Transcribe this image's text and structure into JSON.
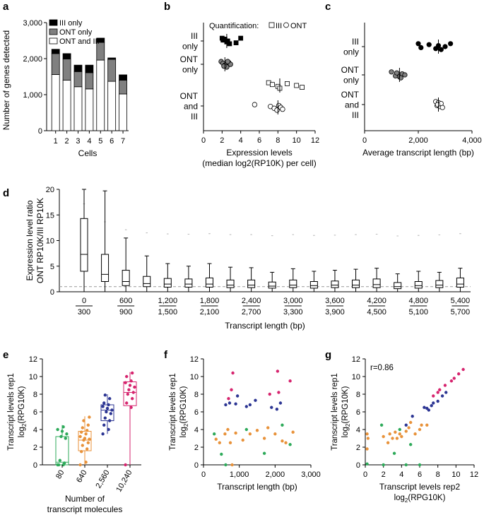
{
  "colors": {
    "black": "#000000",
    "ont_gray": "#808080",
    "green": "#2eaa5a",
    "orange": "#e8923a",
    "blue": "#2c3593",
    "magenta": "#d6246e",
    "box_edge": "#000000",
    "dash": "#999999"
  },
  "chart_data": [
    {
      "panel": "a",
      "type": "bar",
      "stacked": true,
      "categories": [
        "1",
        "2",
        "3",
        "4",
        "5",
        "6",
        "7"
      ],
      "series": [
        {
          "name": "ONT and III",
          "values": [
            1560,
            1400,
            1220,
            1160,
            1960,
            1370,
            1020
          ]
        },
        {
          "name": "ONT only",
          "values": [
            580,
            590,
            420,
            450,
            490,
            610,
            380
          ]
        },
        {
          "name": "III only",
          "values": [
            120,
            150,
            180,
            210,
            120,
            40,
            150
          ]
        }
      ],
      "legend": [
        "III only",
        "ONT only",
        "ONT and III"
      ],
      "xlabel": "Cells",
      "ylabel": "Number of genes detected",
      "ylim": [
        0,
        3000
      ],
      "yticks": [
        "0",
        "1,000",
        "2,000",
        "3,000"
      ]
    },
    {
      "panel": "b",
      "type": "scatter",
      "categories": [
        "III only",
        "ONT only",
        "ONT and III"
      ],
      "category_lines": [
        [
          "III",
          "only"
        ],
        [
          "ONT",
          "only"
        ],
        [
          "ONT",
          "and",
          "III"
        ]
      ],
      "legend_label": "Quantification:",
      "legend_items": [
        "III",
        "ONT"
      ],
      "xlabel": "Expression levels",
      "xlabel2": "(median log2(RP10K) per cell)",
      "xlim": [
        0,
        12
      ],
      "xticks": [
        "0",
        "2",
        "4",
        "6",
        "8",
        "10",
        "12"
      ],
      "series": [
        {
          "name": "III",
          "category": "III only",
          "x": [
            2.0,
            2.2,
            2.5,
            2.8,
            2.3,
            2.6,
            3.5,
            4.0,
            2.1
          ]
        },
        {
          "name": "ONT",
          "category": "ONT only",
          "x": [
            1.9,
            2.1,
            2.3,
            2.5,
            2.7,
            2.9,
            2.2,
            2.6
          ]
        },
        {
          "name": "III",
          "category": "ONT and III",
          "x": [
            7.0,
            7.4,
            8.0,
            8.2,
            9.0,
            10.0,
            10.6
          ]
        },
        {
          "name": "ONT",
          "category": "ONT and III",
          "x": [
            5.5,
            7.2,
            7.6,
            7.9,
            8.1,
            8.3,
            8.5
          ]
        }
      ],
      "medians": {
        "III only": 2.5,
        "ONT only": 2.3,
        "ONT and III III": 8.2,
        "ONT and III ONT": 8.0
      }
    },
    {
      "panel": "c",
      "type": "scatter",
      "categories": [
        "III only",
        "ONT only",
        "ONT and III"
      ],
      "category_lines": [
        [
          "III",
          "only"
        ],
        [
          "ONT",
          "only"
        ],
        [
          "ONT",
          "and",
          "III"
        ]
      ],
      "xlabel": "Average transcript length (bp)",
      "xlim": [
        0,
        4000
      ],
      "xticks": [
        "0",
        "2,000",
        "4,000"
      ],
      "series": [
        {
          "name": "III only",
          "x": [
            2000,
            2100,
            2400,
            2650,
            2750,
            2850,
            3000,
            3200
          ]
        },
        {
          "name": "ONT only",
          "x": [
            1000,
            1150,
            1200,
            1300,
            1400,
            1350,
            1500
          ]
        },
        {
          "name": "ONT and III",
          "x": [
            2650,
            2700,
            2750,
            2800,
            2850,
            2900,
            2720
          ]
        }
      ],
      "medians": {
        "III only": 2750,
        "ONT only": 1300,
        "ONT and III": 2750
      }
    },
    {
      "panel": "d",
      "type": "box",
      "categories_top": [
        "0",
        "600",
        "1,200",
        "1,800",
        "2,400",
        "3,000",
        "3,600",
        "4,200",
        "4,800",
        "5,400"
      ],
      "categories_bottom": [
        "300",
        "900",
        "1,500",
        "2,100",
        "2,700",
        "3,300",
        "3,900",
        "4,500",
        "5,100",
        "5,700"
      ],
      "boxes": [
        {
          "min": 0,
          "q1": 4,
          "median": 7.3,
          "q3": 14.3,
          "max": 20
        },
        {
          "min": 0,
          "q1": 2,
          "median": 3.4,
          "q3": 7.3,
          "max": 19.7
        },
        {
          "min": 0,
          "q1": 1.2,
          "median": 2,
          "q3": 4.2,
          "max": 10.5
        },
        {
          "min": 0,
          "q1": 1,
          "median": 1.6,
          "q3": 3,
          "max": 7
        },
        {
          "min": 0,
          "q1": 0.9,
          "median": 1.5,
          "q3": 2.6,
          "max": 5.5
        },
        {
          "min": 0,
          "q1": 0.9,
          "median": 1.5,
          "q3": 2.5,
          "max": 5
        },
        {
          "min": 0,
          "q1": 0.9,
          "median": 1.5,
          "q3": 2.7,
          "max": 5.5
        },
        {
          "min": 0,
          "q1": 0.8,
          "median": 1.3,
          "q3": 2.3,
          "max": 4.8
        },
        {
          "min": 0,
          "q1": 0.8,
          "median": 1.3,
          "q3": 2.3,
          "max": 4.7
        },
        {
          "min": 0,
          "q1": 0.7,
          "median": 1.1,
          "q3": 1.9,
          "max": 3.8
        },
        {
          "min": 0,
          "q1": 0.8,
          "median": 1.3,
          "q3": 2.3,
          "max": 4.5
        },
        {
          "min": 0,
          "q1": 0.7,
          "median": 1.2,
          "q3": 2.0,
          "max": 4.0
        },
        {
          "min": 0,
          "q1": 0.8,
          "median": 1.3,
          "q3": 2.1,
          "max": 4.2
        },
        {
          "min": 0,
          "q1": 0.8,
          "median": 1.3,
          "q3": 2.3,
          "max": 4.4
        },
        {
          "min": 0,
          "q1": 0.8,
          "median": 1.4,
          "q3": 2.5,
          "max": 4.6
        },
        {
          "min": 0,
          "q1": 0.6,
          "median": 1.0,
          "q3": 1.8,
          "max": 3.5
        },
        {
          "min": 0,
          "q1": 0.7,
          "median": 1.2,
          "q3": 2.0,
          "max": 4.0
        },
        {
          "min": 0,
          "q1": 0.8,
          "median": 1.3,
          "q3": 2.2,
          "max": 3.8
        },
        {
          "min": 0,
          "q1": 0.9,
          "median": 1.5,
          "q3": 2.7,
          "max": 4.6
        }
      ],
      "reference_line": 1,
      "xlabel": "Transcript length (bp)",
      "ylabel": "Expression level ratio",
      "ylabel2": "ONT RP10K/III RP10K",
      "ylim": [
        0,
        20
      ],
      "yticks": [
        "0",
        "5",
        "10",
        "15",
        "20"
      ]
    },
    {
      "panel": "e",
      "type": "box",
      "categories": [
        "80",
        "640",
        "2,560",
        "10,240"
      ],
      "boxes": [
        {
          "min": 0,
          "q1": 0,
          "median": 0.3,
          "q3": 3.2,
          "max": 4.5
        },
        {
          "min": 0,
          "q1": 1.6,
          "median": 2.8,
          "q3": 3.8,
          "max": 5.5
        },
        {
          "min": 3.5,
          "q1": 5.0,
          "median": 6.2,
          "q3": 6.8,
          "max": 8.0
        },
        {
          "min": 0,
          "q1": 6.7,
          "median": 8.2,
          "q3": 9.4,
          "max": 10.5
        }
      ],
      "points": [
        [
          0,
          0,
          0,
          0.2,
          0.5,
          3.0,
          3.2,
          3.5,
          3.8,
          4.0,
          4.3
        ],
        [
          0,
          0.3,
          1.5,
          1.8,
          2.2,
          2.5,
          2.8,
          2.9,
          3.0,
          3.2,
          3.5,
          3.7,
          3.9,
          4.2,
          4.5,
          5.0,
          5.4
        ],
        [
          3.5,
          4.0,
          4.5,
          5.0,
          5.3,
          5.8,
          6.0,
          6.2,
          6.4,
          6.6,
          6.8,
          7.0,
          7.5,
          7.9
        ],
        [
          0,
          6.5,
          7.0,
          7.5,
          8.0,
          8.2,
          8.5,
          8.8,
          9.0,
          9.3,
          9.5,
          10.0,
          10.4
        ]
      ],
      "xlabel": "Number of",
      "xlabel2": "transcript molecules",
      "ylabel": "Transcript levels rep1",
      "ylabel2": "log",
      "ylabel2_sub": "2",
      "ylabel2_tail": "(RPG10K)",
      "ylim": [
        0,
        12
      ],
      "yticks": [
        "0",
        "2",
        "4",
        "6",
        "8",
        "10",
        "12"
      ]
    },
    {
      "panel": "f",
      "type": "scatter",
      "series": [
        {
          "name": "magenta",
          "x": [
            820,
            780,
            2070,
            2100,
            2420,
            700,
            1850
          ],
          "y": [
            10.4,
            8.5,
            10.6,
            8.2,
            9.5,
            7.5,
            8.0
          ]
        },
        {
          "name": "blue",
          "x": [
            620,
            730,
            900,
            1200,
            1450,
            1900,
            2050,
            2150,
            950,
            1300
          ],
          "y": [
            6.8,
            7.0,
            6.9,
            6.6,
            7.3,
            6.5,
            6.3,
            7.0,
            7.8,
            6.8
          ]
        },
        {
          "name": "orange",
          "x": [
            350,
            450,
            600,
            680,
            750,
            900,
            1100,
            1300,
            1500,
            1700,
            1800,
            2000,
            2200,
            2300,
            2500,
            800
          ],
          "y": [
            2.9,
            2.5,
            3.5,
            4.0,
            2.5,
            3.6,
            2.8,
            3.5,
            3.9,
            3.0,
            4.2,
            3.5,
            2.7,
            2.5,
            3.7,
            0
          ]
        },
        {
          "name": "green",
          "x": [
            300,
            500,
            620,
            1200,
            1700,
            2200,
            2420
          ],
          "y": [
            3.5,
            1.2,
            0,
            4.0,
            1.3,
            4.5,
            2.3
          ]
        }
      ],
      "xlabel": "Transcript length (bp)",
      "ylabel": "Transcript levels rep1",
      "ylabel2": "log",
      "ylabel2_sub": "2",
      "ylabel2_tail": "(RPG10K)",
      "xlim": [
        0,
        3000
      ],
      "xticks": [
        "0",
        "1,000",
        "2,000",
        "3,000"
      ],
      "ylim": [
        0,
        12
      ],
      "yticks": [
        "0",
        "2",
        "4",
        "6",
        "8",
        "10",
        "12"
      ]
    },
    {
      "panel": "g",
      "type": "scatter",
      "annotation": "r=0.86",
      "series": [
        {
          "name": "magenta",
          "x": [
            7.5,
            8.0,
            8.2,
            8.8,
            9.5,
            9.8,
            10.3,
            10.8
          ],
          "y": [
            7.8,
            8.2,
            8.5,
            9.0,
            9.5,
            9.8,
            10.3,
            10.8
          ]
        },
        {
          "name": "blue",
          "x": [
            4.5,
            5.2,
            6.5,
            6.8,
            7.0,
            7.3,
            7.5,
            8.0,
            8.5,
            8.9
          ],
          "y": [
            4.5,
            5.5,
            6.5,
            6.4,
            6.2,
            6.7,
            7.0,
            7.2,
            7.8,
            8.2
          ]
        },
        {
          "name": "orange",
          "x": [
            0.2,
            0.3,
            2.0,
            2.7,
            3.0,
            3.3,
            3.8,
            4.0,
            4.5,
            5.0,
            5.5,
            6.0,
            6.2,
            2.5,
            3.5,
            4.8,
            6.8,
            0.2
          ],
          "y": [
            3.5,
            3.0,
            3.2,
            3.5,
            3.0,
            3.7,
            3.5,
            3.2,
            3.8,
            4.8,
            3.5,
            4.0,
            4.5,
            2.5,
            3.0,
            4.2,
            4.5,
            1.8
          ]
        },
        {
          "name": "green",
          "x": [
            0.2,
            1.8,
            2.0,
            3.2,
            3.8,
            4.5,
            5.0,
            6.0
          ],
          "y": [
            0.1,
            4.5,
            0,
            1.3,
            4.0,
            0,
            2.3,
            0
          ]
        }
      ],
      "xlabel": "Transcript levels rep2",
      "xlabel2": "log",
      "xlabel2_sub": "2",
      "xlabel2_tail": "(RPG10K)",
      "ylabel": "Transcript levels rep1",
      "ylabel2": "log",
      "ylabel2_sub": "2",
      "ylabel2_tail": "(RPG10K)",
      "xlim": [
        0,
        12
      ],
      "xticks": [
        "0",
        "2",
        "4",
        "6",
        "8",
        "10",
        "12"
      ],
      "ylim": [
        0,
        12
      ],
      "yticks": [
        "0",
        "2",
        "4",
        "6",
        "8",
        "10",
        "12"
      ]
    }
  ],
  "panel_letters": [
    "a",
    "b",
    "c",
    "d",
    "e",
    "f",
    "g"
  ]
}
